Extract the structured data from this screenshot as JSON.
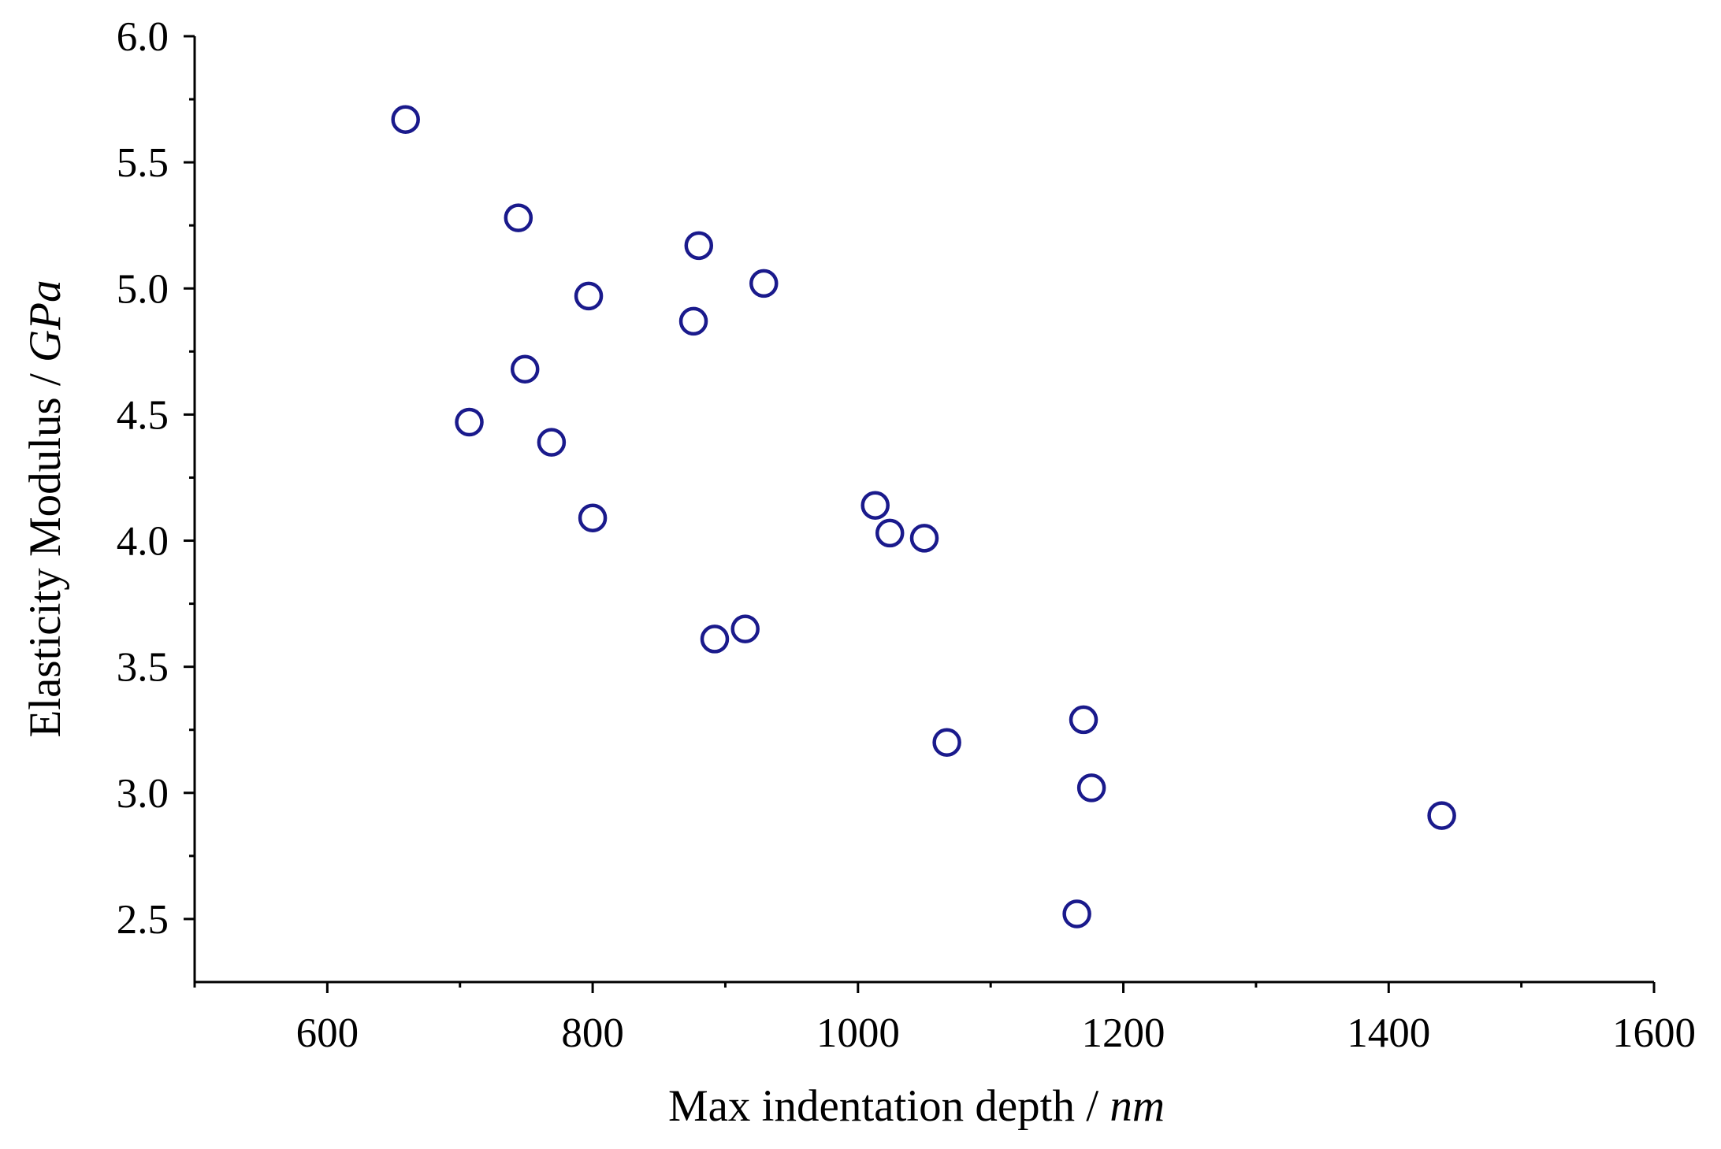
{
  "chart_data": {
    "type": "scatter",
    "title": "",
    "xlabel": "Max indentation depth / ",
    "xlabel_unit": "nm",
    "ylabel": "Elasticity Modulus / ",
    "ylabel_unit": "GPa",
    "xlim": [
      500,
      1600
    ],
    "ylim": [
      2.25,
      6.0
    ],
    "x_ticks": [
      600,
      800,
      1000,
      1200,
      1400,
      1600
    ],
    "x_tick_labels": [
      "600",
      "800",
      "1000",
      "1200",
      "1400",
      "1600"
    ],
    "x_minor_ticks": [
      500,
      700,
      900,
      1100,
      1300,
      1500
    ],
    "y_ticks": [
      2.5,
      3.0,
      3.5,
      4.0,
      4.5,
      5.0,
      5.5,
      6.0
    ],
    "y_tick_labels": [
      "2.5",
      "3.0",
      "3.5",
      "4.0",
      "4.5",
      "5.0",
      "5.5",
      "6.0"
    ],
    "y_minor_ticks": [
      2.75,
      3.25,
      3.75,
      4.25,
      4.75,
      5.25,
      5.75
    ],
    "grid": false,
    "legend": "none",
    "marker": "open-circle",
    "marker_color": "#1a1a8c",
    "series": [
      {
        "points": [
          {
            "x": 659,
            "y": 5.67
          },
          {
            "x": 744,
            "y": 5.28
          },
          {
            "x": 880,
            "y": 5.17
          },
          {
            "x": 929,
            "y": 5.02
          },
          {
            "x": 797,
            "y": 4.97
          },
          {
            "x": 876,
            "y": 4.87
          },
          {
            "x": 749,
            "y": 4.68
          },
          {
            "x": 707,
            "y": 4.47
          },
          {
            "x": 769,
            "y": 4.39
          },
          {
            "x": 800,
            "y": 4.09
          },
          {
            "x": 1013,
            "y": 4.14
          },
          {
            "x": 1024,
            "y": 4.03
          },
          {
            "x": 1050,
            "y": 4.01
          },
          {
            "x": 915,
            "y": 3.65
          },
          {
            "x": 892,
            "y": 3.61
          },
          {
            "x": 1170,
            "y": 3.29
          },
          {
            "x": 1067,
            "y": 3.2
          },
          {
            "x": 1176,
            "y": 3.02
          },
          {
            "x": 1440,
            "y": 2.91
          },
          {
            "x": 1165,
            "y": 2.52
          }
        ]
      }
    ]
  }
}
